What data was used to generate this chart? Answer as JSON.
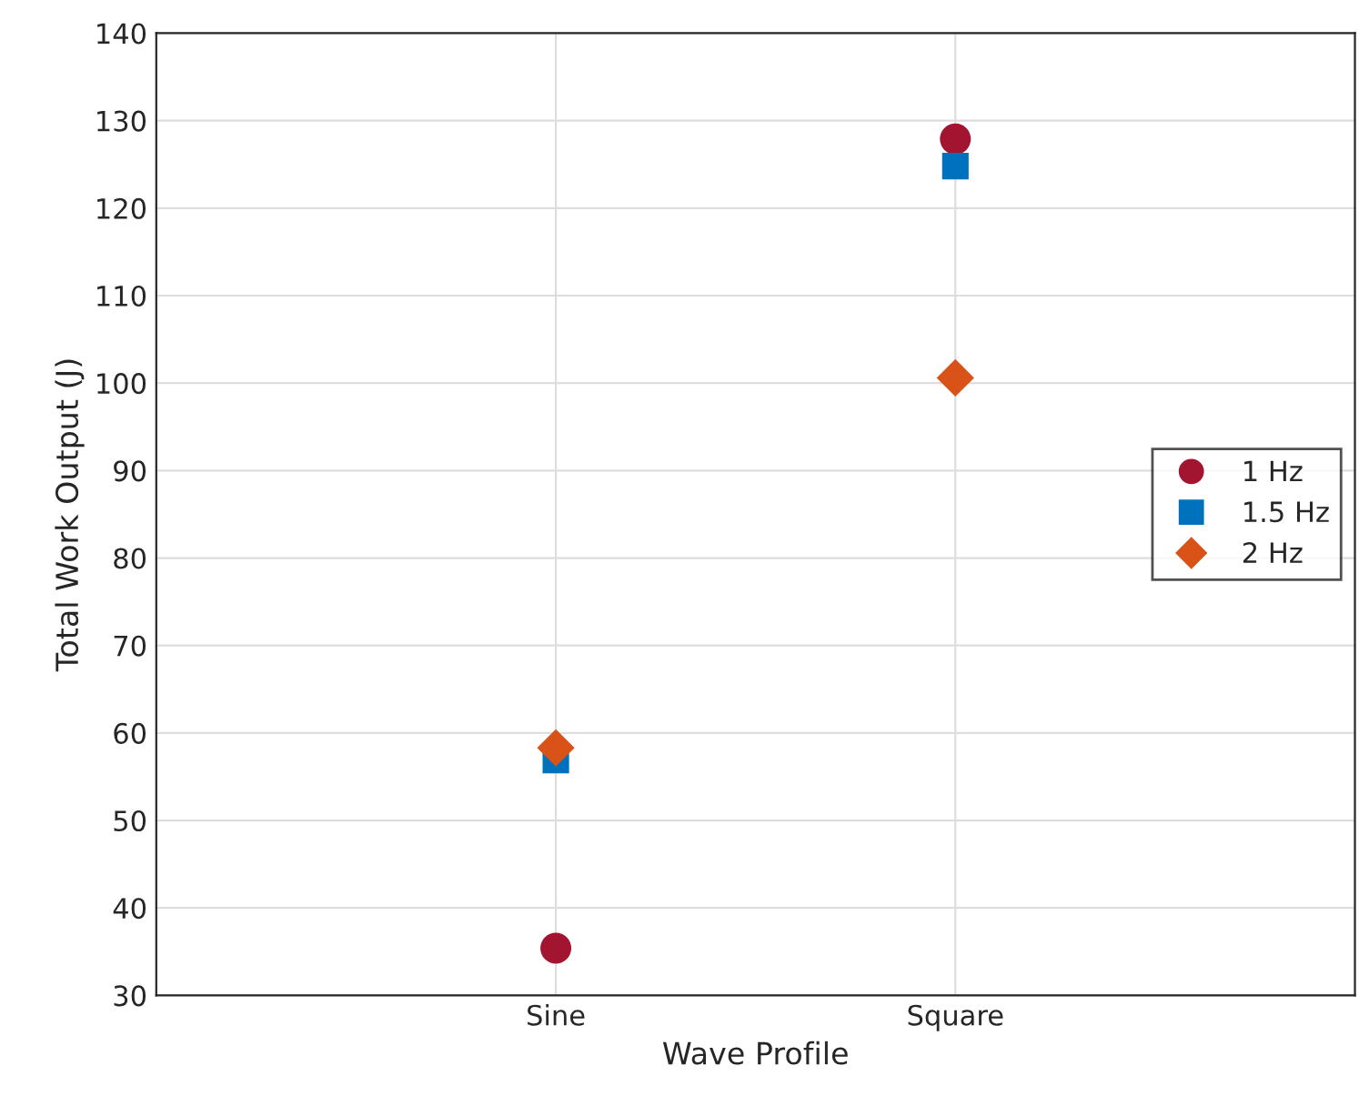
{
  "chart_data": {
    "type": "scatter",
    "xlabel": "Wave Profile",
    "ylabel": "Total Work Output (J)",
    "categories": [
      "Sine",
      "Square"
    ],
    "series": [
      {
        "name": "1 Hz",
        "color": "#a2142f",
        "marker": "circle",
        "values": [
          35.4,
          127.9
        ]
      },
      {
        "name": "1.5 Hz",
        "color": "#0072bd",
        "marker": "square",
        "values": [
          56.9,
          124.8
        ]
      },
      {
        "name": "2 Hz",
        "color": "#d95319",
        "marker": "diamond",
        "values": [
          58.3,
          100.6
        ]
      }
    ],
    "ylim": [
      30,
      140
    ],
    "yticks": [
      30,
      40,
      50,
      60,
      70,
      80,
      90,
      100,
      110,
      120,
      130,
      140
    ],
    "grid": true,
    "legend": "right"
  }
}
